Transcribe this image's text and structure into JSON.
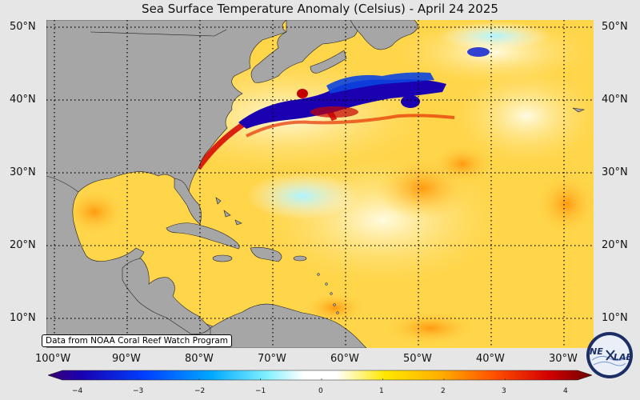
{
  "title": "Sea Surface Temperature Anomaly (Celsius) - April 24 2025",
  "credit": "Data from NOAA Coral Reef Watch Program",
  "lat_labels": [
    "50°N",
    "40°N",
    "30°N",
    "20°N",
    "10°N"
  ],
  "lon_labels": [
    "100°W",
    "90°W",
    "80°W",
    "70°W",
    "60°W",
    "50°W",
    "40°W",
    "30°W"
  ],
  "colorbar": {
    "ticks": [
      "−4",
      "−3",
      "−2",
      "−1",
      "0",
      "1",
      "2",
      "3",
      "4"
    ],
    "min": -4,
    "max": 4
  },
  "logo": {
    "text_left": "NE",
    "text_right": "LAB"
  },
  "colors": {
    "land": "#a6a6a6",
    "ocean_base": "#ffd84a",
    "cold": "#1a00b0",
    "warm": "#d40000",
    "background": "#e6e6e6"
  }
}
